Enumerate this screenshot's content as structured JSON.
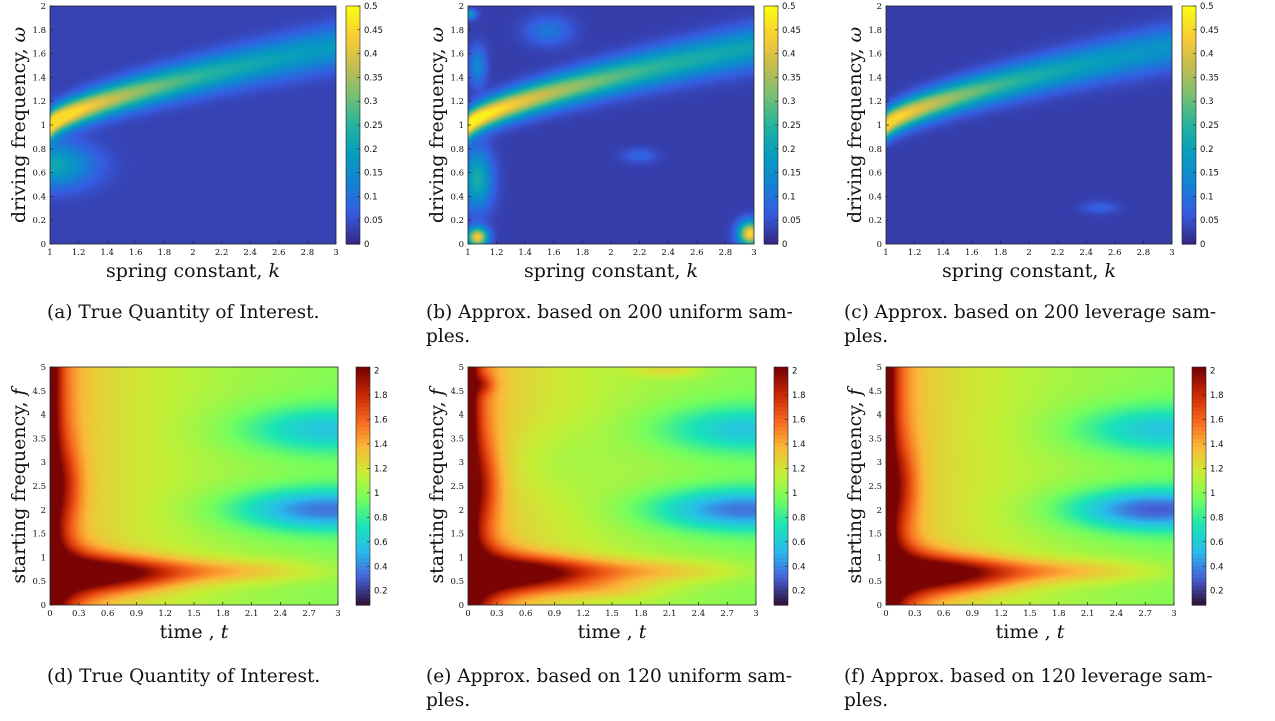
{
  "figure": {
    "rows": [
      {
        "xlabel": "spring constant, ",
        "xvar": "k",
        "ylabel": "driving frequency, ",
        "yvar": "ω",
        "xticks": [
          "1",
          "1.2",
          "1.4",
          "1.6",
          "1.8",
          "2",
          "2.2",
          "2.4",
          "2.6",
          "2.8",
          "3"
        ],
        "yticks": [
          "0",
          "0.2",
          "0.4",
          "0.6",
          "0.8",
          "1",
          "1.2",
          "1.4",
          "1.6",
          "1.8",
          "2"
        ],
        "cbticks": [
          "0",
          "0.05",
          "0.1",
          "0.15",
          "0.2",
          "0.25",
          "0.3",
          "0.35",
          "0.4",
          "0.45",
          "0.5"
        ],
        "colormap": "parula"
      },
      {
        "xlabel": "time , ",
        "xvar": "t",
        "ylabel": "starting frequency, ",
        "yvar": "f",
        "xticks": [
          "0",
          "0.3",
          "0.6",
          "0.9",
          "1.2",
          "1.5",
          "1.8",
          "2.1",
          "2.4",
          "2.7",
          "3"
        ],
        "yticks": [
          "0",
          "0.5",
          "1",
          "1.5",
          "2",
          "2.5",
          "3",
          "3.5",
          "4",
          "4.5",
          "5"
        ],
        "cbticks": [
          "0.2",
          "0.4",
          "0.6",
          "0.8",
          "1",
          "1.2",
          "1.4",
          "1.6",
          "1.8",
          "2"
        ],
        "colormap": "turbo"
      }
    ],
    "captions": [
      [
        "(a) True Quantity of Interest."
      ],
      [
        "(b) Approx. based on 200 uniform sam-",
        "ples."
      ],
      [
        "(c) Approx. based on 200 leverage sam-",
        "ples."
      ],
      [
        "(d) True Quantity of Interest."
      ],
      [
        "(e) Approx. based on 120 uniform sam-",
        "ples."
      ],
      [
        "(f) Approx. based on 120 leverage sam-",
        "ples."
      ]
    ]
  },
  "chart_data": [
    {
      "type": "heatmap",
      "panel": "a",
      "xlim": [
        1,
        3
      ],
      "ylim": [
        0,
        2
      ],
      "clim": [
        0,
        0.5
      ],
      "colormap": "parula",
      "description_values": {
        "peak_value": 0.45,
        "peak_at": {
          "x": 1.0,
          "y": 0.98
        },
        "ridge": "band rising from ω≈1 at k=1 to ω≈1.7 at k=3"
      }
    },
    {
      "type": "heatmap",
      "panel": "b",
      "xlim": [
        1,
        3
      ],
      "ylim": [
        0,
        2
      ],
      "clim": [
        0,
        0.5
      ],
      "colormap": "parula",
      "description_values": {
        "peak_value": 0.47,
        "peak_at": {
          "x": 1.05,
          "y": 0.97
        },
        "extra_peaks": [
          {
            "x": 1.05,
            "y": 0.03,
            "value": 0.5
          },
          {
            "x": 2.97,
            "y": 0.07,
            "value": 0.5
          }
        ]
      }
    },
    {
      "type": "heatmap",
      "panel": "c",
      "xlim": [
        1,
        3
      ],
      "ylim": [
        0,
        2
      ],
      "clim": [
        0,
        0.5
      ],
      "colormap": "parula",
      "description_values": {
        "peak_value": 0.42,
        "peak_at": {
          "x": 1.05,
          "y": 0.98
        }
      }
    },
    {
      "type": "heatmap",
      "panel": "d",
      "xlim": [
        0,
        3
      ],
      "ylim": [
        0,
        5
      ],
      "clim": [
        0.1,
        2
      ],
      "colormap": "turbo",
      "description_values": {
        "max_value": 2.0,
        "max_near": {
          "x": 0.05,
          "y": 0.6
        },
        "min_value": 0.15,
        "min_near": {
          "x": 2.9,
          "y": 2.0
        }
      }
    },
    {
      "type": "heatmap",
      "panel": "e",
      "xlim": [
        0,
        3
      ],
      "ylim": [
        0,
        5
      ],
      "clim": [
        0.1,
        2
      ],
      "colormap": "turbo",
      "description_values": {
        "max_value": 2.0,
        "max_near": {
          "x": 0.2,
          "y": 0.6
        },
        "min_value": 0.15,
        "min_near": {
          "x": 2.9,
          "y": 2.0
        }
      }
    },
    {
      "type": "heatmap",
      "panel": "f",
      "xlim": [
        0,
        3
      ],
      "ylim": [
        0,
        5
      ],
      "clim": [
        0.1,
        2
      ],
      "colormap": "turbo",
      "description_values": {
        "max_value": 2.0,
        "max_near": {
          "x": 0.05,
          "y": 0.7
        },
        "min_value": 0.15,
        "min_near": {
          "x": 2.9,
          "y": 2.0
        }
      }
    }
  ]
}
